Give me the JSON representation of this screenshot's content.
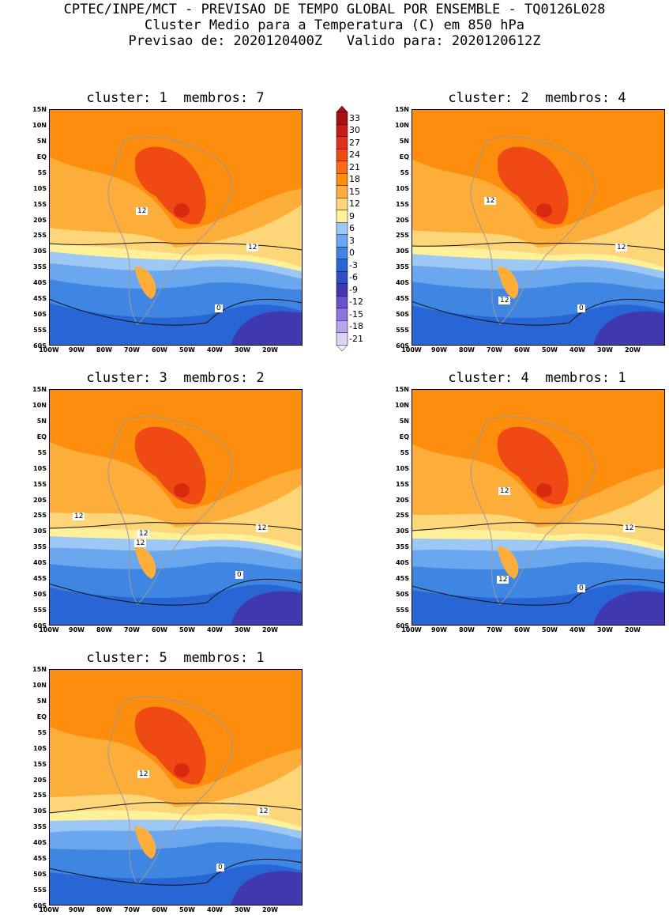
{
  "header": {
    "line1": "CPTEC/INPE/MCT - PREVISAO DE TEMPO GLOBAL POR ENSEMBLE - TQ0126L028",
    "line2": "Cluster Medio para a Temperatura (C) em 850 hPa",
    "line3": "Previsao de: 2020120400Z   Valido para: 2020120612Z"
  },
  "panels": [
    {
      "title": "cluster: 1  membros: 7",
      "labels": [
        "12",
        "12",
        "0"
      ]
    },
    {
      "title": "cluster: 2  membros: 4",
      "labels": [
        "12",
        "12",
        "12",
        "0"
      ]
    },
    {
      "title": "cluster: 3  membros: 2",
      "labels": [
        "12",
        "12",
        "12",
        "12",
        "0"
      ]
    },
    {
      "title": "cluster: 4  membros: 1",
      "labels": [
        "12",
        "12",
        "12",
        "0"
      ]
    },
    {
      "title": "cluster: 5  membros: 1",
      "labels": [
        "12",
        "12",
        "0"
      ]
    }
  ],
  "axes": {
    "lat_ticks": [
      "15N",
      "10N",
      "5N",
      "EQ",
      "5S",
      "10S",
      "15S",
      "20S",
      "25S",
      "30S",
      "35S",
      "40S",
      "45S",
      "50S",
      "55S",
      "60S"
    ],
    "lon_ticks": [
      "100W",
      "90W",
      "80W",
      "70W",
      "60W",
      "50W",
      "40W",
      "30W",
      "20W"
    ]
  },
  "colorbar": {
    "levels": [
      "33",
      "30",
      "27",
      "24",
      "21",
      "18",
      "15",
      "12",
      "9",
      "6",
      "3",
      "0",
      "-3",
      "-6",
      "-9",
      "-12",
      "-15",
      "-18",
      "-21"
    ],
    "colors": [
      "#a50f15",
      "#c8191b",
      "#e0301e",
      "#f04a14",
      "#fb6a1b",
      "#fd8d0c",
      "#fdae3a",
      "#fdd67a",
      "#fff09a",
      "#9dc8f5",
      "#6aa7ee",
      "#3f86e3",
      "#2866d6",
      "#2f4fc4",
      "#4038ae",
      "#6a4fd0",
      "#8d74e0",
      "#b6a4ec",
      "#dcd2f5"
    ]
  }
}
